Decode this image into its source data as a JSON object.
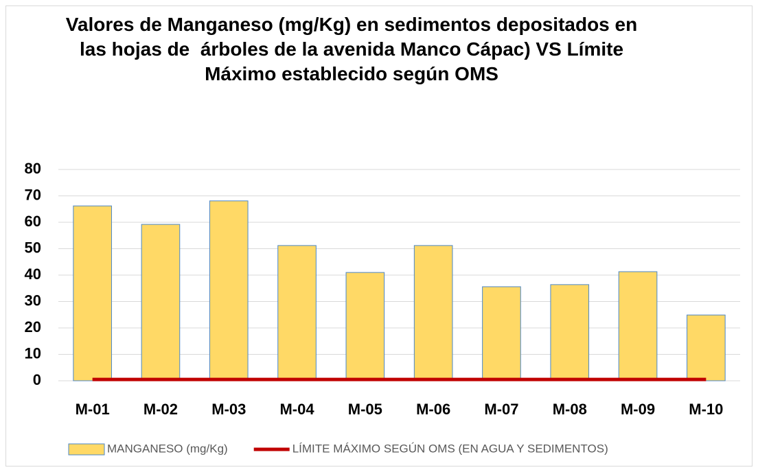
{
  "chart_data": {
    "type": "bar",
    "title": "Valores de Manganeso (mg/Kg) en sedimentos depositados en las hojas de  árboles de la avenida Manco Cápac) VS Límite Máximo establecido según OMS",
    "categories": [
      "M-01",
      "M-02",
      "M-03",
      "M-04",
      "M-05",
      "M-06",
      "M-07",
      "M-08",
      "M-09",
      "M-10"
    ],
    "series": [
      {
        "name": "MANGANESO (mg/Kg)",
        "type": "bar",
        "color": "#FFD966",
        "values": [
          66.2,
          59.2,
          68.1,
          51.2,
          41.0,
          51.2,
          35.6,
          36.4,
          41.3,
          24.9
        ]
      },
      {
        "name": "LÍMITE MÁXIMO SEGÚN OMS (EN AGUA Y SEDIMENTOS)",
        "type": "line",
        "color": "#C00000",
        "values": [
          0.5,
          0.5,
          0.5,
          0.5,
          0.5,
          0.5,
          0.5,
          0.5,
          0.5,
          0.5
        ]
      }
    ],
    "ylim": [
      0,
      80
    ],
    "yticks": [
      0,
      10,
      20,
      30,
      40,
      50,
      60,
      70,
      80
    ],
    "grid": true,
    "legend": "bottom"
  }
}
